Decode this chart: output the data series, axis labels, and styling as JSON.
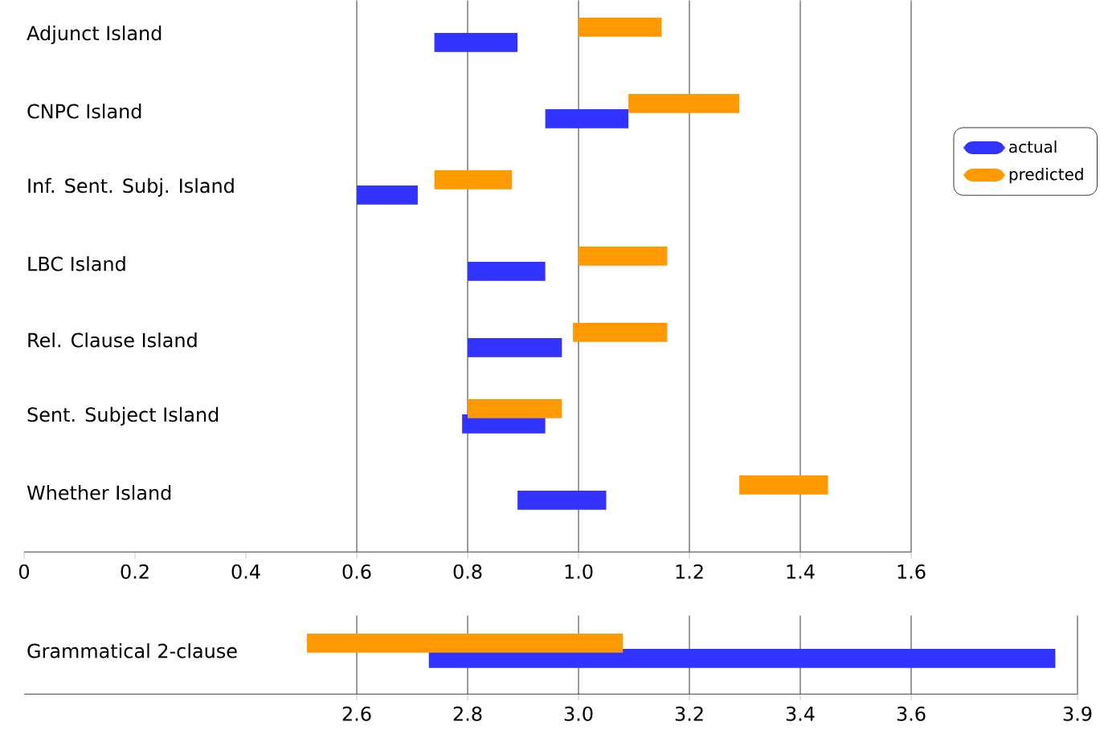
{
  "chart_data": [
    {
      "type": "bar",
      "orientation": "horizontal",
      "categories": [
        "Adjunct Island",
        "CNPC Island",
        "Inf. Sent. Subj. Island",
        "LBC Island",
        "Rel. Clause Island",
        "Sent. Subject Island",
        "Whether Island"
      ],
      "series": [
        {
          "name": "actual",
          "color": "#3333ff",
          "base": [
            0.74,
            0.94,
            0.6,
            0.8,
            0.8,
            0.79,
            0.89
          ],
          "values": [
            0.15,
            0.15,
            0.11,
            0.14,
            0.17,
            0.15,
            0.16
          ]
        },
        {
          "name": "predicted",
          "color": "#ff9900",
          "base": [
            1.0,
            1.09,
            0.74,
            1.0,
            0.99,
            0.8,
            1.29
          ],
          "values": [
            0.15,
            0.2,
            0.14,
            0.16,
            0.17,
            0.17,
            0.16
          ]
        }
      ],
      "xlim": [
        0,
        1.6
      ],
      "xticks": [
        0,
        0.2,
        0.4,
        0.6,
        0.8,
        {
          "value": 1.0,
          "label": "1.0"
        },
        1.2,
        1.4,
        1.6
      ],
      "grid": "x",
      "legend": "right"
    },
    {
      "type": "bar",
      "orientation": "horizontal",
      "categories": [
        "Grammatical 2-clause"
      ],
      "series": [
        {
          "color": "#3333ff",
          "base": [
            2.73
          ],
          "values": [
            1.13
          ]
        },
        {
          "color": "#ff9900",
          "base": [
            2.51
          ],
          "values": [
            0.57
          ]
        }
      ],
      "xlim": [
        2.0,
        3.9
      ],
      "xticks": [
        2.6,
        2.8,
        {
          "value": 3.0,
          "label": "3.0"
        },
        3.2,
        3.4,
        3.6,
        3.9
      ],
      "grid": "x"
    }
  ]
}
